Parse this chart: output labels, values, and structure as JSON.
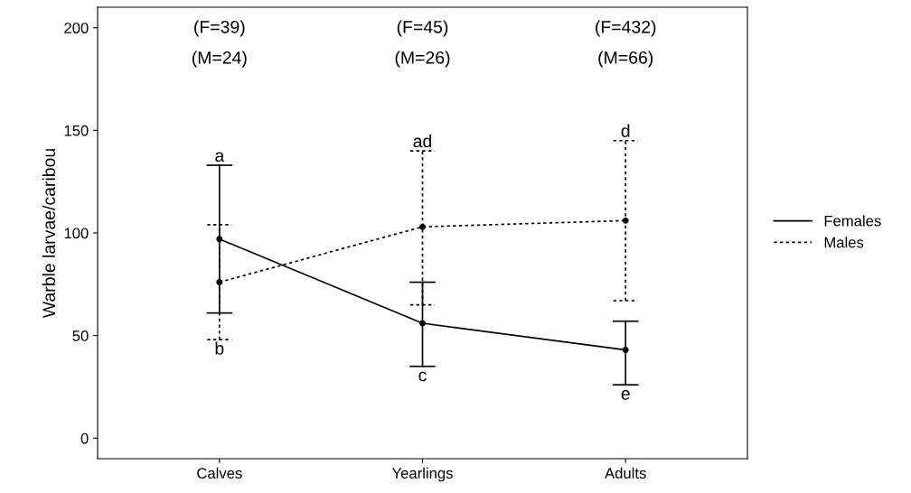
{
  "chart_data": {
    "type": "line",
    "ylabel": "Warble larvae/caribou",
    "categories": [
      "Calves",
      "Yearlings",
      "Adults"
    ],
    "series": [
      {
        "name": "Females",
        "color": "#000000",
        "line_style": "solid",
        "values": [
          97,
          56,
          43
        ],
        "errors": [
          [
            61,
            133
          ],
          [
            35,
            76
          ],
          [
            26,
            57
          ]
        ]
      },
      {
        "name": "Males",
        "color": "#000000",
        "line_style": "dotted",
        "values": [
          76,
          103,
          106
        ],
        "errors": [
          [
            48,
            104
          ],
          [
            65,
            140
          ],
          [
            67,
            145
          ]
        ]
      }
    ],
    "ylim": [
      -10,
      210
    ],
    "yticks": [
      0,
      50,
      100,
      150,
      200
    ],
    "grid": false,
    "legend": "right",
    "marker": "circle",
    "annotations": [
      "(F=39)",
      "(M=24)",
      "(F=45)",
      "(M=26)",
      "(F=432)",
      "(M=66)",
      {
        "text": "a",
        "x": "Calves",
        "y": 133
      },
      {
        "text": "b",
        "x": "Calves",
        "y": 48
      },
      {
        "text": "ad",
        "x": "Yearlings",
        "y": 140
      },
      {
        "text": "c",
        "x": "Yearlings",
        "y": 35
      },
      {
        "text": "d",
        "x": "Adults",
        "y": 145
      },
      {
        "text": "e",
        "x": "Adults",
        "y": 26
      }
    ]
  }
}
